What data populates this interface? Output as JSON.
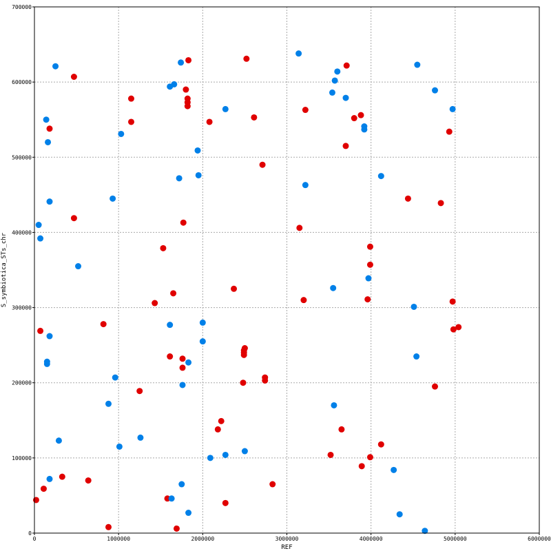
{
  "chart_data": {
    "type": "scatter",
    "xlabel": "REF",
    "ylabel": "S_symbiotica_STs_chr",
    "xlim": [
      0,
      6000000
    ],
    "ylim": [
      0,
      700000
    ],
    "x_ticks": [
      0,
      1000000,
      2000000,
      3000000,
      4000000,
      5000000,
      6000000
    ],
    "y_ticks": [
      0,
      100000,
      200000,
      300000,
      400000,
      500000,
      600000,
      700000
    ],
    "x_tick_labels": [
      "0",
      "1000000",
      "2000000",
      "3000000",
      "4000000",
      "5000000",
      "6000000"
    ],
    "y_tick_labels": [
      "0",
      "100000",
      "200000",
      "300000",
      "400000",
      "500000",
      "600000",
      "700000"
    ],
    "grid": true,
    "series": [
      {
        "color": "#e00000",
        "points": [
          [
            20000,
            44000
          ],
          [
            110000,
            59000
          ],
          [
            180000,
            538000
          ],
          [
            70000,
            269000
          ],
          [
            330000,
            75000
          ],
          [
            470000,
            607000
          ],
          [
            470000,
            419000
          ],
          [
            640000,
            70000
          ],
          [
            820000,
            278000
          ],
          [
            880000,
            8000
          ],
          [
            1150000,
            578000
          ],
          [
            1150000,
            547000
          ],
          [
            1250000,
            189000
          ],
          [
            1430000,
            306000
          ],
          [
            1530000,
            379000
          ],
          [
            1580000,
            46000
          ],
          [
            1610000,
            235000
          ],
          [
            1650000,
            319000
          ],
          [
            1690000,
            6000
          ],
          [
            1760000,
            220000
          ],
          [
            1760000,
            232000
          ],
          [
            1770000,
            413000
          ],
          [
            1800000,
            590000
          ],
          [
            1830000,
            629000
          ],
          [
            1820000,
            578000
          ],
          [
            1820000,
            573000
          ],
          [
            1820000,
            568000
          ],
          [
            2080000,
            547000
          ],
          [
            2180000,
            138000
          ],
          [
            2220000,
            149000
          ],
          [
            2270000,
            40000
          ],
          [
            2370000,
            325000
          ],
          [
            2480000,
            200000
          ],
          [
            2490000,
            237000
          ],
          [
            2490000,
            240000
          ],
          [
            2490000,
            243000
          ],
          [
            2500000,
            246000
          ],
          [
            2520000,
            631000
          ],
          [
            2610000,
            553000
          ],
          [
            2710000,
            490000
          ],
          [
            2740000,
            203000
          ],
          [
            2740000,
            207000
          ],
          [
            2830000,
            65000
          ],
          [
            3150000,
            406000
          ],
          [
            3200000,
            310000
          ],
          [
            3220000,
            563000
          ],
          [
            3520000,
            104000
          ],
          [
            3650000,
            138000
          ],
          [
            3700000,
            515000
          ],
          [
            3710000,
            622000
          ],
          [
            3800000,
            552000
          ],
          [
            3880000,
            556000
          ],
          [
            3890000,
            89000
          ],
          [
            3960000,
            311000
          ],
          [
            3990000,
            357000
          ],
          [
            3990000,
            381000
          ],
          [
            3990000,
            101000
          ],
          [
            4120000,
            118000
          ],
          [
            4440000,
            445000
          ],
          [
            4760000,
            195000
          ],
          [
            4830000,
            439000
          ],
          [
            4930000,
            534000
          ],
          [
            4970000,
            308000
          ],
          [
            4980000,
            271000
          ],
          [
            5040000,
            274000
          ]
        ]
      },
      {
        "color": "#0080e8",
        "points": [
          [
            50000,
            410000
          ],
          [
            70000,
            392000
          ],
          [
            140000,
            550000
          ],
          [
            160000,
            520000
          ],
          [
            150000,
            225000
          ],
          [
            150000,
            228000
          ],
          [
            180000,
            441000
          ],
          [
            180000,
            262000
          ],
          [
            180000,
            72000
          ],
          [
            250000,
            621000
          ],
          [
            290000,
            123000
          ],
          [
            520000,
            355000
          ],
          [
            880000,
            172000
          ],
          [
            930000,
            445000
          ],
          [
            960000,
            207000
          ],
          [
            1010000,
            115000
          ],
          [
            1030000,
            531000
          ],
          [
            1260000,
            127000
          ],
          [
            1610000,
            277000
          ],
          [
            1610000,
            594000
          ],
          [
            1630000,
            46000
          ],
          [
            1660000,
            597000
          ],
          [
            1720000,
            472000
          ],
          [
            1740000,
            626000
          ],
          [
            1750000,
            65000
          ],
          [
            1760000,
            197000
          ],
          [
            1830000,
            227000
          ],
          [
            1830000,
            27000
          ],
          [
            1940000,
            509000
          ],
          [
            1950000,
            476000
          ],
          [
            2000000,
            280000
          ],
          [
            2000000,
            255000
          ],
          [
            2090000,
            100000
          ],
          [
            2270000,
            564000
          ],
          [
            2270000,
            104000
          ],
          [
            2500000,
            109000
          ],
          [
            3140000,
            638000
          ],
          [
            3220000,
            463000
          ],
          [
            3540000,
            586000
          ],
          [
            3550000,
            326000
          ],
          [
            3560000,
            170000
          ],
          [
            3570000,
            602000
          ],
          [
            3600000,
            614000
          ],
          [
            3700000,
            579000
          ],
          [
            3920000,
            541000
          ],
          [
            3920000,
            537000
          ],
          [
            3970000,
            339000
          ],
          [
            4120000,
            475000
          ],
          [
            4270000,
            84000
          ],
          [
            4340000,
            25000
          ],
          [
            4510000,
            301000
          ],
          [
            4540000,
            235000
          ],
          [
            4550000,
            623000
          ],
          [
            4640000,
            3000
          ],
          [
            4760000,
            589000
          ],
          [
            4970000,
            564000
          ]
        ]
      }
    ]
  }
}
